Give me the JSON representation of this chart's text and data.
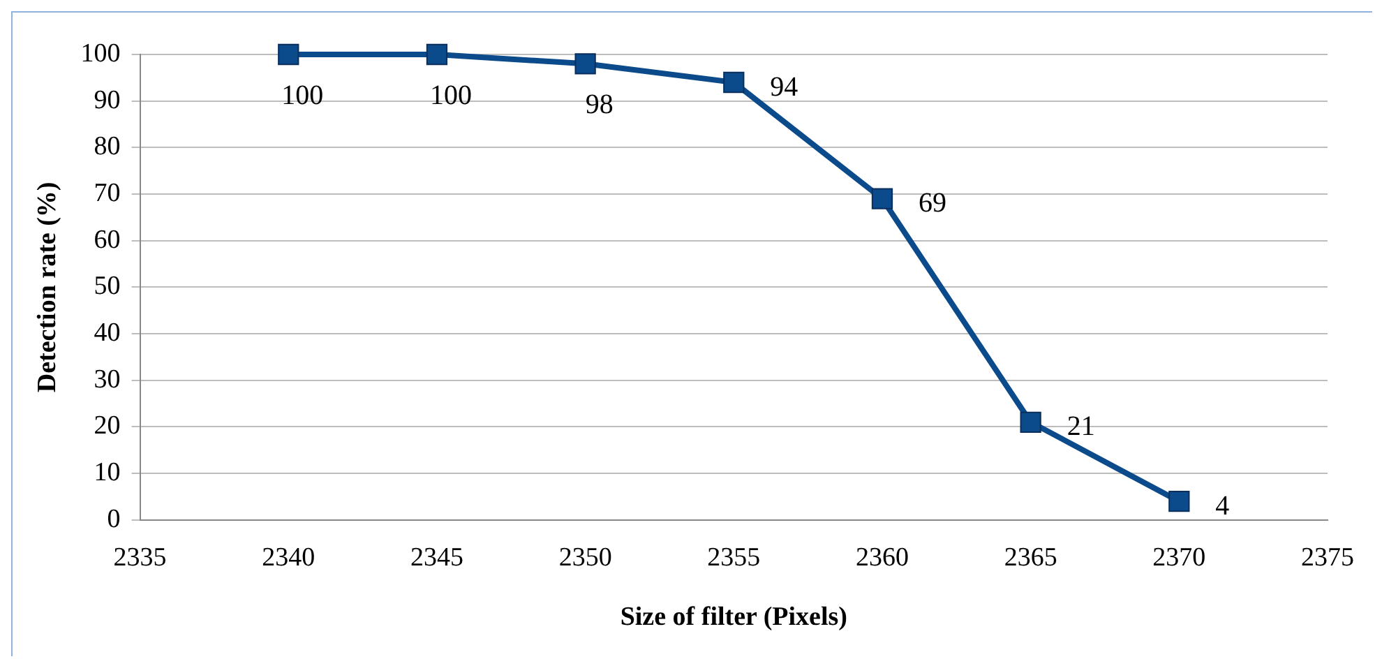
{
  "chart_data": {
    "type": "line",
    "xlabel": "Size of filter (Pixels)",
    "ylabel": "Detection rate (%)",
    "x": [
      2340,
      2345,
      2350,
      2355,
      2360,
      2365,
      2370
    ],
    "series": [
      {
        "color": "#0b4a8b",
        "values": [
          100,
          100,
          98,
          94,
          69,
          21,
          4
        ]
      }
    ],
    "xlim": [
      2335,
      2375
    ],
    "xticks": [
      2335,
      2340,
      2345,
      2350,
      2355,
      2360,
      2365,
      2370,
      2375
    ],
    "ylim": [
      0,
      100
    ],
    "yticks": [
      0,
      10,
      20,
      30,
      40,
      50,
      60,
      70,
      80,
      90,
      100
    ],
    "grid": "y",
    "legend": false,
    "marker": "square",
    "line_style": "solid",
    "data_labels": true
  }
}
